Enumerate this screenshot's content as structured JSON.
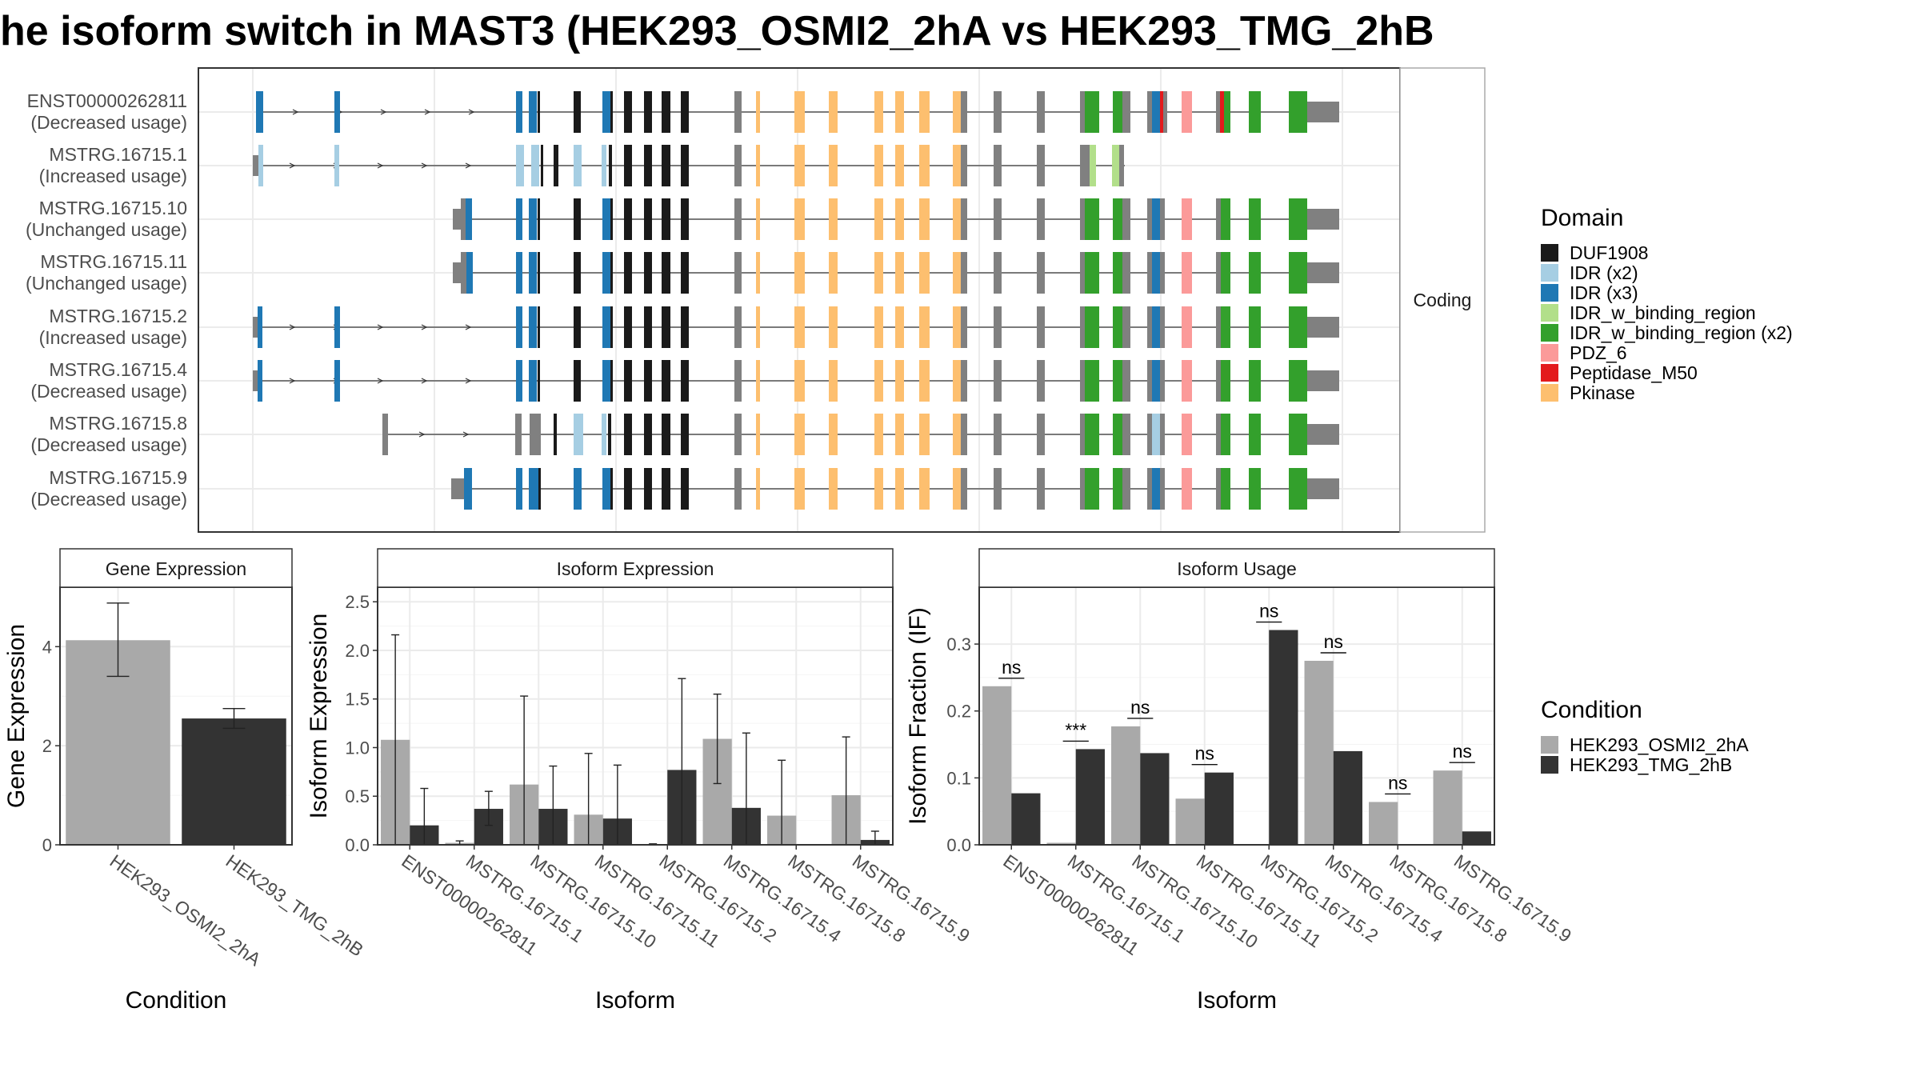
{
  "figure": {
    "title": "he isoform switch in MAST3 (HEK293_OSMI2_2hA vs HEK293_TMG_2hB"
  },
  "colors": {
    "condition_a": "#a9a9a9",
    "condition_b": "#333333",
    "utr": "#808080",
    "domains": {
      "DUF1908": "#1a1a1a",
      "IDR (x2)": "#a6cee3",
      "IDR (x3)": "#1f78b4",
      "IDR_w_binding_region": "#b2df8a",
      "IDR_w_binding_region (x2)": "#33a02c",
      "PDZ_6": "#fb9a99",
      "Peptidase_M50": "#e31a1c",
      "Pkinase": "#fdbf6f"
    }
  },
  "structure_panel": {
    "strip_label": "Coding",
    "transcripts": [
      {
        "id": "ENST00000262811",
        "usage": "(Decreased usage)"
      },
      {
        "id": "MSTRG.16715.1",
        "usage": "(Increased usage)"
      },
      {
        "id": "MSTRG.16715.10",
        "usage": "(Unchanged usage)"
      },
      {
        "id": "MSTRG.16715.11",
        "usage": "(Unchanged usage)"
      },
      {
        "id": "MSTRG.16715.2",
        "usage": "(Increased usage)"
      },
      {
        "id": "MSTRG.16715.4",
        "usage": "(Decreased usage)"
      },
      {
        "id": "MSTRG.16715.8",
        "usage": "(Decreased usage)"
      },
      {
        "id": "MSTRG.16715.9",
        "usage": "(Decreased usage)"
      }
    ]
  },
  "domain_legend": {
    "title": "Domain",
    "items": [
      "DUF1908",
      "IDR (x2)",
      "IDR (x3)",
      "IDR_w_binding_region",
      "IDR_w_binding_region (x2)",
      "PDZ_6",
      "Peptidase_M50",
      "Pkinase"
    ]
  },
  "condition_legend": {
    "title": "Condition",
    "items": [
      "HEK293_OSMI2_2hA",
      "HEK293_TMG_2hB"
    ]
  },
  "chart_data": [
    {
      "type": "bar",
      "title": "Gene Expression",
      "xlabel": "Condition",
      "ylabel": "Gene Expression",
      "categories": [
        "HEK293_OSMI2_2hA",
        "HEK293_TMG_2hB"
      ],
      "values": [
        4.13,
        2.55
      ],
      "error_low": [
        3.4,
        2.35
      ],
      "error_high": [
        4.88,
        2.75
      ],
      "yticks": [
        0,
        2,
        4
      ],
      "ylim": [
        0,
        5.2
      ]
    },
    {
      "type": "bar",
      "title": "Isoform Expression",
      "xlabel": "Isoform",
      "ylabel": "Isoform Expression",
      "categories": [
        "ENST00000262811",
        "MSTRG.16715.1",
        "MSTRG.16715.10",
        "MSTRG.16715.11",
        "MSTRG.16715.2",
        "MSTRG.16715.4",
        "MSTRG.16715.8",
        "MSTRG.16715.9"
      ],
      "series": [
        {
          "name": "HEK293_OSMI2_2hA",
          "values": [
            1.08,
            0.02,
            0.62,
            0.31,
            0.0,
            1.09,
            0.3,
            0.51
          ],
          "error_low": [
            0.0,
            0.0,
            0.0,
            0.0,
            0.0,
            0.63,
            0.0,
            0.0
          ],
          "error_high": [
            2.16,
            0.04,
            1.53,
            0.94,
            0.01,
            1.55,
            0.87,
            1.11
          ]
        },
        {
          "name": "HEK293_TMG_2hB",
          "values": [
            0.2,
            0.37,
            0.37,
            0.27,
            0.77,
            0.38,
            0.0,
            0.05
          ],
          "error_low": [
            0.0,
            0.2,
            0.0,
            0.0,
            0.0,
            0.0,
            0.0,
            0.0
          ],
          "error_high": [
            0.58,
            0.55,
            0.81,
            0.82,
            1.71,
            1.15,
            0.0,
            0.14
          ]
        }
      ],
      "yticks": [
        0.0,
        0.5,
        1.0,
        1.5,
        2.0,
        2.5
      ],
      "ylim": [
        0,
        2.65
      ]
    },
    {
      "type": "bar",
      "title": "Isoform Usage",
      "xlabel": "Isoform",
      "ylabel": "Isoform Fraction (IF)",
      "categories": [
        "ENST00000262811",
        "MSTRG.16715.1",
        "MSTRG.16715.10",
        "MSTRG.16715.11",
        "MSTRG.16715.2",
        "MSTRG.16715.4",
        "MSTRG.16715.8",
        "MSTRG.16715.9"
      ],
      "series": [
        {
          "name": "HEK293_OSMI2_2hA",
          "values": [
            0.237,
            0.003,
            0.177,
            0.069,
            0.0,
            0.275,
            0.064,
            0.111
          ]
        },
        {
          "name": "HEK293_TMG_2hB",
          "values": [
            0.077,
            0.143,
            0.137,
            0.108,
            0.321,
            0.14,
            0.0,
            0.02
          ]
        }
      ],
      "significance": [
        "ns",
        "***",
        "ns",
        "ns",
        "ns",
        "ns",
        "ns",
        "ns"
      ],
      "yticks": [
        0.0,
        0.1,
        0.2,
        0.3
      ],
      "ylim": [
        0,
        0.385
      ]
    }
  ]
}
